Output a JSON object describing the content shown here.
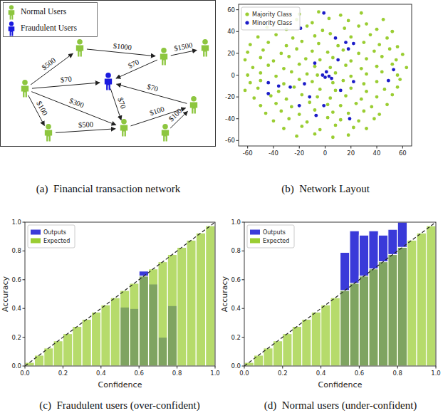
{
  "diagram": {
    "legend": [
      {
        "label": "Normal Users",
        "type": "normal",
        "color": "#8dc63f"
      },
      {
        "label": "Fraudulent Users",
        "type": "fraudulent",
        "color": "#1a1adf"
      }
    ],
    "nodes": [
      {
        "type": "normal"
      },
      {
        "type": "normal"
      },
      {
        "type": "fraudulent"
      },
      {
        "type": "normal"
      },
      {
        "type": "normal"
      },
      {
        "type": "normal"
      },
      {
        "type": "normal"
      },
      {
        "type": "normal"
      },
      {
        "type": "normal"
      }
    ],
    "edges": [
      {
        "from": 0,
        "to": 1,
        "label": "$500"
      },
      {
        "from": 0,
        "to": 2,
        "label": "$70"
      },
      {
        "from": 0,
        "to": 6,
        "label": "$100"
      },
      {
        "from": 0,
        "to": 7,
        "label": "$300"
      },
      {
        "from": 6,
        "to": 7,
        "label": "$500"
      },
      {
        "from": 3,
        "to": 2,
        "label": "$70"
      },
      {
        "from": 3,
        "to": 4,
        "label": "$1500"
      },
      {
        "from": 1,
        "to": 3,
        "label": "$1000"
      },
      {
        "from": 2,
        "to": 7,
        "label": "$70"
      },
      {
        "from": 5,
        "to": 2,
        "label": "$70"
      },
      {
        "from": 7,
        "to": 5,
        "label": "$100"
      },
      {
        "from": 8,
        "to": 5,
        "label": "$100"
      }
    ],
    "caption": "(a)  Financial transaction network"
  },
  "chart_data": [
    {
      "type": "scatter",
      "caption": "(b)  Network Layout",
      "legend": "upper left",
      "grid": false,
      "xlim": [
        -67,
        67
      ],
      "ylim": [
        -65,
        65
      ],
      "xticks": [
        -60,
        -40,
        -20,
        0,
        20,
        40,
        60
      ],
      "yticks": [
        -60,
        -40,
        -20,
        0,
        20,
        40,
        60
      ],
      "series": [
        {
          "name": "Majority Class",
          "color": "#9acd32",
          "marker": "circle",
          "x": [
            -20,
            -5,
            12,
            28,
            -35,
            -22,
            -10,
            3,
            18,
            32,
            45,
            -45,
            -30,
            -14,
            -2,
            15,
            26,
            40,
            52,
            -52,
            -38,
            -25,
            -8,
            4,
            20,
            35,
            48,
            -58,
            -44,
            -30,
            -18,
            -5,
            10,
            30,
            42,
            56,
            -60,
            -48,
            -34,
            -22,
            -10,
            2,
            14,
            26,
            38,
            50,
            60,
            -62,
            -50,
            -40,
            -28,
            -15,
            -4,
            6,
            20,
            32,
            44,
            55,
            -56,
            -44,
            -32,
            -20,
            -8,
            4,
            16,
            28,
            40,
            52,
            63,
            -60,
            -50,
            -38,
            -26,
            -14,
            -6,
            8,
            20,
            32,
            44,
            56,
            -58,
            -50,
            -32,
            -20,
            -10,
            6,
            14,
            30,
            40,
            58,
            -62,
            -52,
            -36,
            -24,
            -4,
            8,
            20,
            32,
            46,
            56,
            -55,
            -42,
            -30,
            -18,
            -6,
            4,
            16,
            28,
            40,
            52,
            -50,
            -38,
            -26,
            -12,
            2,
            12,
            24,
            36,
            48,
            -46,
            -34,
            -20,
            -8,
            6,
            18,
            30,
            42,
            -40,
            -28,
            -14,
            2,
            12,
            26,
            38,
            -32,
            -18,
            -4,
            8,
            22,
            32,
            -22,
            -8,
            6,
            18
          ],
          "values": [
            56,
            58,
            55,
            57,
            49,
            51,
            48,
            52,
            50,
            47,
            51,
            44,
            42,
            45,
            41,
            43,
            45,
            42,
            40,
            35,
            37,
            34,
            36,
            38,
            35,
            37,
            34,
            28,
            30,
            27,
            31,
            29,
            27,
            30,
            28,
            26,
            21,
            23,
            20,
            24,
            22,
            21,
            23,
            20,
            22,
            24,
            19,
            14,
            16,
            13,
            17,
            15,
            14,
            16,
            13,
            15,
            17,
            14,
            7,
            9,
            6,
            10,
            8,
            7,
            9,
            6,
            8,
            10,
            7,
            0,
            2,
            -1,
            3,
            1,
            0,
            2,
            -1,
            1,
            3,
            0,
            -7,
            -5,
            -8,
            -4,
            -6,
            -7,
            -5,
            -8,
            -6,
            -4,
            -14,
            -12,
            -15,
            -11,
            -13,
            -14,
            -12,
            -15,
            -13,
            -11,
            -21,
            -19,
            -22,
            -18,
            -20,
            -21,
            -19,
            -22,
            -20,
            -18,
            -28,
            -26,
            -29,
            -25,
            -27,
            -28,
            -26,
            -29,
            -27,
            -35,
            -33,
            -36,
            -32,
            -34,
            -35,
            -33,
            -36,
            -42,
            -40,
            -43,
            -39,
            -41,
            -42,
            -40,
            -49,
            -47,
            -50,
            -46,
            -48,
            -49,
            -56,
            -54,
            -57,
            -55
          ]
        },
        {
          "name": "Minority Class",
          "color": "#1c1cc8",
          "marker": "circle",
          "x": [
            -1,
            -19,
            8,
            16,
            22,
            -44,
            -36,
            -27,
            -44,
            -16,
            -2,
            0,
            3,
            1,
            5,
            -8,
            10,
            18,
            22,
            12,
            -20,
            -7,
            -1,
            19,
            49,
            53,
            -12
          ],
          "values": [
            57,
            43,
            34,
            30,
            29,
            -7,
            -10,
            -11,
            -17,
            -8,
            0,
            -2,
            -1,
            3,
            -3,
            11,
            14,
            24,
            -6,
            -14,
            -28,
            -37,
            -28,
            -40,
            -5,
            5,
            -20
          ]
        }
      ]
    },
    {
      "type": "bar",
      "caption": "(c)  Fraudulent users (over-confident)",
      "x_label": "Confidence",
      "y_label": "Accuracy",
      "legend": "upper left",
      "grid": false,
      "xlim": [
        0,
        1
      ],
      "ylim": [
        0,
        1
      ],
      "xticks": [
        {
          "value": 0,
          "label": "0.0"
        },
        0.2,
        0.4,
        0.6,
        0.8,
        {
          "value": 1,
          "label": "1.0"
        }
      ],
      "yticks": [
        {
          "value": 0,
          "label": "0.0"
        },
        0.2,
        0.4,
        0.6,
        0.8,
        {
          "value": 1,
          "label": "1.0"
        }
      ],
      "bins": [
        0,
        0.05,
        0.1,
        0.15,
        0.2,
        0.25,
        0.3,
        0.35,
        0.4,
        0.45,
        0.5,
        0.55,
        0.6,
        0.65,
        0.7,
        0.75,
        0.8,
        0.85,
        0.9,
        0.95,
        1
      ],
      "series": [
        {
          "name": "Outputs",
          "color": "#3a3ad9",
          "values": [
            0,
            0,
            0,
            0,
            0,
            0,
            0,
            0,
            0,
            0,
            0.41,
            0.4,
            0.66,
            0.57,
            0.2,
            0.42,
            0,
            0,
            0,
            0
          ]
        },
        {
          "name": "Expected",
          "color": "#9acd32",
          "values": [
            0.025,
            0.075,
            0.125,
            0.175,
            0.225,
            0.275,
            0.325,
            0.375,
            0.425,
            0.475,
            0.525,
            0.575,
            0.625,
            0.675,
            0.725,
            0.775,
            0.825,
            0.875,
            0.925,
            0.975
          ]
        }
      ]
    },
    {
      "type": "bar",
      "caption": "(d)  Normal users (under-confident)",
      "x_label": "Confidence",
      "y_label": "Accuracy",
      "legend": "upper left",
      "grid": false,
      "xlim": [
        0,
        1
      ],
      "ylim": [
        0,
        1
      ],
      "xticks": [
        {
          "value": 0,
          "label": "0.0"
        },
        0.2,
        0.4,
        0.6,
        0.8,
        {
          "value": 1,
          "label": "1.0"
        }
      ],
      "yticks": [
        {
          "value": 0,
          "label": "0.0"
        },
        0.2,
        0.4,
        0.6,
        0.8,
        {
          "value": 1,
          "label": "1.0"
        }
      ],
      "bins": [
        0,
        0.05,
        0.1,
        0.15,
        0.2,
        0.25,
        0.3,
        0.35,
        0.4,
        0.45,
        0.5,
        0.55,
        0.6,
        0.65,
        0.7,
        0.75,
        0.8,
        0.85,
        0.9,
        0.95,
        1
      ],
      "series": [
        {
          "name": "Outputs",
          "color": "#3a3ad9",
          "values": [
            0,
            0,
            0,
            0,
            0,
            0,
            0,
            0,
            0,
            0,
            0.79,
            0.94,
            0.91,
            0.94,
            0.91,
            0.95,
            1.0,
            0,
            0,
            0
          ]
        },
        {
          "name": "Expected",
          "color": "#9acd32",
          "values": [
            0.025,
            0.075,
            0.125,
            0.175,
            0.225,
            0.275,
            0.325,
            0.375,
            0.425,
            0.475,
            0.525,
            0.575,
            0.625,
            0.675,
            0.725,
            0.775,
            0.825,
            0.875,
            0.925,
            0.975
          ]
        }
      ]
    }
  ]
}
